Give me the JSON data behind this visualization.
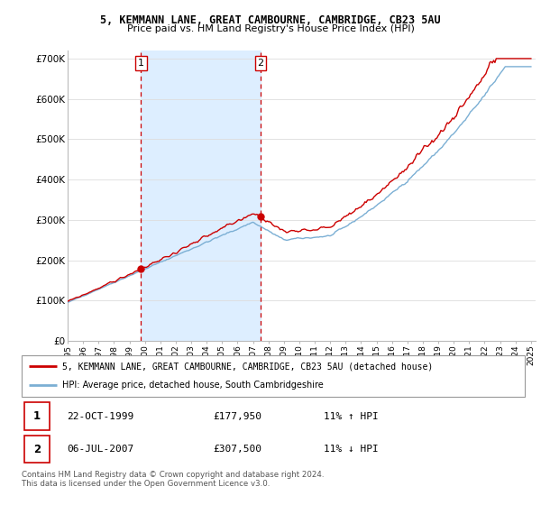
{
  "title": "5, KEMMANN LANE, GREAT CAMBOURNE, CAMBRIDGE, CB23 5AU",
  "subtitle": "Price paid vs. HM Land Registry's House Price Index (HPI)",
  "ylim": [
    0,
    720000
  ],
  "yticks": [
    0,
    100000,
    200000,
    300000,
    400000,
    500000,
    600000,
    700000
  ],
  "ytick_labels": [
    "£0",
    "£100K",
    "£200K",
    "£300K",
    "£400K",
    "£500K",
    "£600K",
    "£700K"
  ],
  "line1_color": "#cc0000",
  "line2_color": "#7bafd4",
  "shade_color": "#ddeeff",
  "vline_color": "#cc0000",
  "sale1_month": 57,
  "sale1_price": 177950,
  "sale2_month": 150,
  "sale2_price": 307500,
  "legend_line1": "5, KEMMANN LANE, GREAT CAMBOURNE, CAMBRIDGE, CB23 5AU (detached house)",
  "legend_line2": "HPI: Average price, detached house, South Cambridgeshire",
  "table_row1": [
    "1",
    "22-OCT-1999",
    "£177,950",
    "11% ↑ HPI"
  ],
  "table_row2": [
    "2",
    "06-JUL-2007",
    "£307,500",
    "11% ↓ HPI"
  ],
  "footnote": "Contains HM Land Registry data © Crown copyright and database right 2024.\nThis data is licensed under the Open Government Licence v3.0.",
  "background_color": "#ffffff",
  "grid_color": "#dddddd",
  "start_year": 1995,
  "n_months": 361
}
